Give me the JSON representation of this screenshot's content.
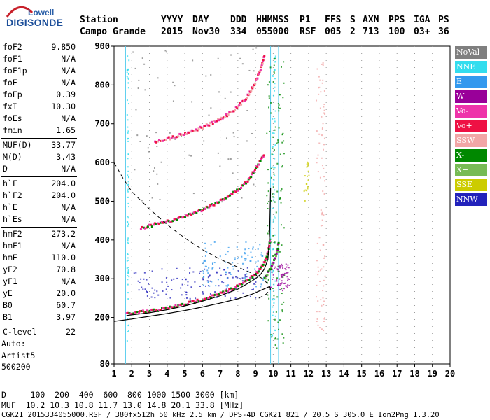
{
  "logo": {
    "line1": "Lowell",
    "line2": "DIGISONDE"
  },
  "header": {
    "labels": [
      "Station",
      "YYYY",
      "DAY",
      "DDD",
      "HHMMSS",
      "P1",
      "FFS",
      "S",
      "AXN",
      "PPS",
      "IGA",
      "PS"
    ],
    "values": [
      "Campo Grande",
      "2015",
      "Nov30",
      "334",
      "055000",
      "RSF",
      "005",
      "2",
      "713",
      "100",
      "03+",
      "36"
    ]
  },
  "params": [
    [
      [
        "foF2",
        "9.850"
      ],
      [
        "foF1",
        "N/A"
      ],
      [
        "foF1p",
        "N/A"
      ],
      [
        "foE",
        "N/A"
      ],
      [
        "foEp",
        "0.39"
      ],
      [
        "fxI",
        "10.30"
      ],
      [
        "foEs",
        "N/A"
      ],
      [
        "fmin",
        "1.65"
      ]
    ],
    [
      [
        "MUF(D)",
        "33.77"
      ],
      [
        "M(D)",
        "3.43"
      ],
      [
        "D",
        "N/A"
      ]
    ],
    [
      [
        "h`F",
        "204.0"
      ],
      [
        "h`F2",
        "204.0"
      ],
      [
        "h`E",
        "N/A"
      ],
      [
        "h`Es",
        "N/A"
      ]
    ],
    [
      [
        "hmF2",
        "273.2"
      ],
      [
        "hmF1",
        "N/A"
      ],
      [
        "hmE",
        "110.0"
      ],
      [
        "yF2",
        "70.8"
      ],
      [
        "yF1",
        "N/A"
      ],
      [
        "yE",
        "20.0"
      ],
      [
        "B0",
        "60.7"
      ],
      [
        "B1",
        "3.97"
      ]
    ],
    [
      [
        "C-level",
        "22"
      ]
    ]
  ],
  "auto": [
    "Auto:",
    "Artist5",
    "500200"
  ],
  "legend": [
    {
      "label": "NoVal",
      "color": "#7f7f7f"
    },
    {
      "label": "NNE",
      "color": "#33ddee"
    },
    {
      "label": "E",
      "color": "#3399ee"
    },
    {
      "label": "W",
      "color": "#990099"
    },
    {
      "label": "Vo-",
      "color": "#ee33aa"
    },
    {
      "label": "Vo+",
      "color": "#ee1144"
    },
    {
      "label": "SSW",
      "color": "#f2a6a6"
    },
    {
      "label": "X-",
      "color": "#008800"
    },
    {
      "label": "X+",
      "color": "#77bb55"
    },
    {
      "label": "SSE",
      "color": "#cccc00"
    },
    {
      "label": "NNW",
      "color": "#2222bb"
    }
  ],
  "footer": {
    "d_line": "D     100  200  400  600  800 1000 1500 3000 [km]",
    "muf_line": "MUF  10.2 10.3 10.8 11.7 13.0 14.8 20.1 33.8 [MHz]",
    "file_line": "CGK21_2015334055000.RSF / 380fx512h 50 kHz 2.5 km / DPS-4D CGK21 821 / 20.5 S 305.0 E Ion2Png 1.3.20"
  },
  "chart_data": {
    "type": "scatter",
    "title": "",
    "xlabel": "",
    "ylabel": "",
    "xlim": [
      1,
      20
    ],
    "ylim": [
      80,
      900
    ],
    "xticks": [
      1,
      2,
      3,
      4,
      5,
      6,
      7,
      8,
      9,
      10,
      11,
      12,
      13,
      14,
      15,
      16,
      17,
      18,
      19,
      20
    ],
    "yticks": [
      80,
      200,
      300,
      400,
      500,
      600,
      700,
      800,
      900
    ],
    "grid": "vertical-dotted",
    "markers": {
      "foF2": 9.85,
      "vertical_lines_at": [
        1.65,
        9.85,
        10.3
      ]
    },
    "series": [
      {
        "name": "NoVal",
        "color": "#7f7f7f"
      },
      {
        "name": "NNE",
        "color": "#33ddee"
      },
      {
        "name": "E",
        "color": "#3399ee"
      },
      {
        "name": "W",
        "color": "#990099"
      },
      {
        "name": "Vo-",
        "color": "#ee33aa"
      },
      {
        "name": "Vo+",
        "color": "#ee1144"
      },
      {
        "name": "SSW",
        "color": "#f2a6a6"
      },
      {
        "name": "X-",
        "color": "#008800"
      },
      {
        "name": "X+",
        "color": "#77bb55"
      },
      {
        "name": "SSE",
        "color": "#cccc00"
      },
      {
        "name": "NNW",
        "color": "#2222bb"
      }
    ],
    "traces": {
      "o_trace_1hop": [
        [
          1.7,
          210
        ],
        [
          3,
          217
        ],
        [
          4,
          225
        ],
        [
          5,
          235
        ],
        [
          6,
          248
        ],
        [
          7,
          262
        ],
        [
          8,
          282
        ],
        [
          8.5,
          296
        ],
        [
          9,
          312
        ],
        [
          9.3,
          330
        ],
        [
          9.5,
          345
        ],
        [
          9.7,
          370
        ],
        [
          9.8,
          400
        ]
      ],
      "o_trace_2hop": [
        [
          2.5,
          432
        ],
        [
          4,
          448
        ],
        [
          5,
          462
        ],
        [
          6,
          480
        ],
        [
          7,
          502
        ],
        [
          8,
          530
        ],
        [
          8.5,
          552
        ],
        [
          9,
          585
        ],
        [
          9.3,
          608
        ],
        [
          9.5,
          625
        ]
      ],
      "o_trace_3hop": [
        [
          3.3,
          655
        ],
        [
          4,
          662
        ],
        [
          5,
          676
        ],
        [
          6,
          692
        ],
        [
          7,
          712
        ],
        [
          8,
          745
        ],
        [
          8.5,
          770
        ],
        [
          9,
          810
        ],
        [
          9.3,
          845
        ],
        [
          9.5,
          880
        ]
      ],
      "x_trace_1hop": [
        [
          9.5,
          300
        ],
        [
          9.8,
          325
        ],
        [
          10.0,
          345
        ],
        [
          10.2,
          370
        ],
        [
          10.3,
          395
        ]
      ]
    },
    "profiles": {
      "model_curve_upper": [
        [
          1.7,
          205
        ],
        [
          3,
          212
        ],
        [
          4,
          220
        ],
        [
          5,
          230
        ],
        [
          6,
          242
        ],
        [
          7,
          256
        ],
        [
          8,
          273
        ],
        [
          8.5,
          286
        ],
        [
          9,
          300
        ],
        [
          9.3,
          312
        ],
        [
          9.5,
          325
        ],
        [
          9.7,
          350
        ],
        [
          9.75,
          380
        ],
        [
          9.8,
          420
        ],
        [
          9.85,
          535
        ]
      ],
      "model_curve_lower": [
        [
          1,
          190
        ],
        [
          2,
          196
        ],
        [
          3,
          203
        ],
        [
          4,
          210
        ],
        [
          5,
          218
        ],
        [
          6,
          227
        ],
        [
          7,
          237
        ],
        [
          8,
          248
        ],
        [
          8.8,
          260
        ],
        [
          9.3,
          270
        ],
        [
          9.6,
          276
        ],
        [
          9.8,
          280
        ],
        [
          9.8,
          275
        ]
      ],
      "density_profile_dashed": [
        [
          1,
          600
        ],
        [
          1.5,
          560
        ],
        [
          2,
          525
        ],
        [
          3,
          480
        ],
        [
          4,
          440
        ],
        [
          5,
          405
        ],
        [
          6,
          375
        ],
        [
          7,
          350
        ],
        [
          8,
          330
        ],
        [
          9,
          310
        ],
        [
          9.5,
          298
        ],
        [
          9.85,
          273
        ],
        [
          9.6,
          260
        ],
        [
          9,
          245
        ]
      ]
    }
  }
}
